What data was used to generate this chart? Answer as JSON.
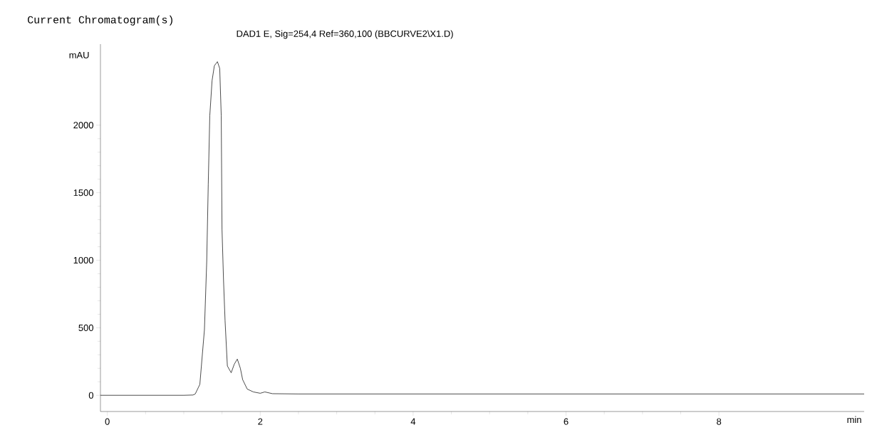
{
  "chart_data": {
    "type": "line",
    "title": "Current Chromatogram(s)",
    "subtitle": "DAD1 E, Sig=254,4 Ref=360,100 (BBCURVE2\\X1.D)",
    "xlabel": "min",
    "ylabel": "mAU",
    "xlim": [
      -0.09,
      9.9
    ],
    "ylim": [
      -120,
      2600
    ],
    "xticks": [
      0,
      2,
      4,
      6,
      8
    ],
    "yticks": [
      0,
      500,
      1000,
      1500,
      2000
    ],
    "grid": false,
    "marker": "none",
    "line_style": "solid",
    "series": [
      {
        "color": "#202020",
        "x": [
          -0.09,
          0.5,
          1.0,
          1.12,
          1.15,
          1.21,
          1.27,
          1.3,
          1.32,
          1.34,
          1.37,
          1.4,
          1.44,
          1.47,
          1.49,
          1.5,
          1.52,
          1.54,
          1.57,
          1.62,
          1.66,
          1.7,
          1.74,
          1.77,
          1.83,
          1.91,
          2.0,
          2.06,
          2.16,
          2.5,
          4.0,
          6.0,
          8.0,
          9.9
        ],
        "values": [
          0,
          0,
          0,
          2,
          10,
          81,
          486,
          992,
          1563,
          2069,
          2330,
          2440,
          2470,
          2420,
          2069,
          1229,
          850,
          551,
          217,
          167,
          230,
          268,
          200,
          116,
          46,
          25,
          15,
          25,
          12,
          10,
          10,
          10,
          10,
          10
        ]
      }
    ]
  }
}
